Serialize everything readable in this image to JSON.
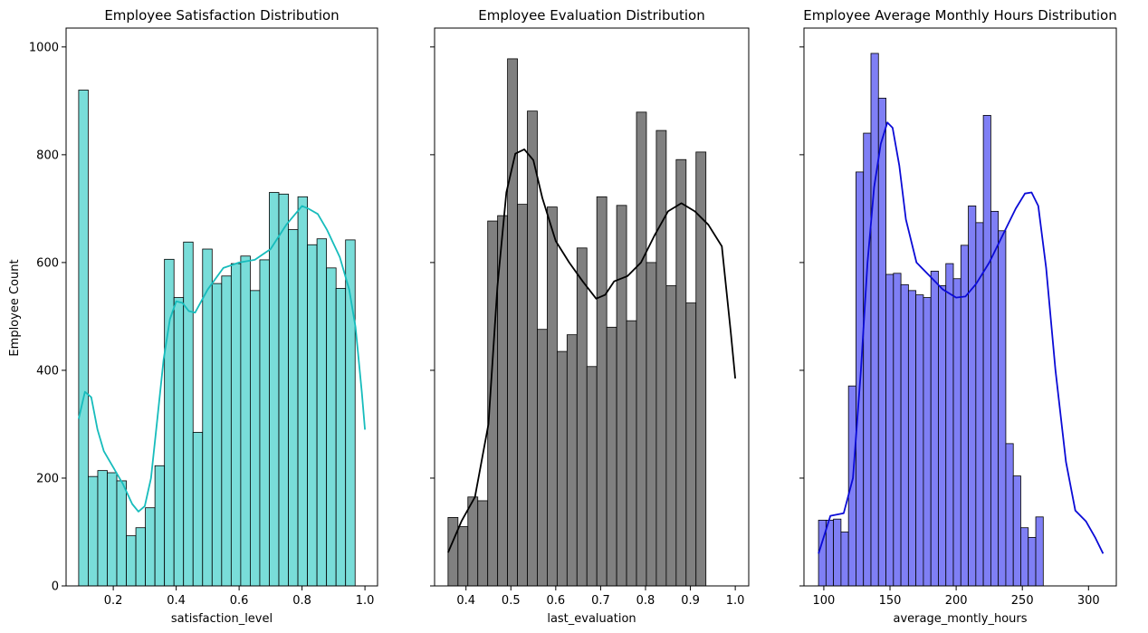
{
  "figure": {
    "ylabel": "Employee Count"
  },
  "chart_data": [
    {
      "type": "bar",
      "title": "Employee Satisfaction Distribution",
      "xlabel": "satisfaction_level",
      "ylabel": "Employee Count",
      "xlim": [
        0.05,
        1.04
      ],
      "ylim": [
        0,
        1035
      ],
      "xticks": [
        0.2,
        0.4,
        0.6,
        0.8,
        1.0
      ],
      "xtick_labels": [
        "0.2",
        "0.4",
        "0.6",
        "0.8",
        "1.0"
      ],
      "yticks": [
        0,
        200,
        400,
        600,
        800,
        1000
      ],
      "ytick_labels": [
        "0",
        "200",
        "400",
        "600",
        "800",
        "1000"
      ],
      "bin_start": 0.09,
      "bin_width": 0.0303,
      "values": [
        920,
        203,
        214,
        210,
        195,
        93,
        108,
        145,
        223,
        606,
        535,
        638,
        285,
        625,
        561,
        575,
        598,
        612,
        548,
        605,
        730,
        727,
        661,
        722,
        633,
        644,
        590,
        552,
        642
      ],
      "kde_x": [
        0.09,
        0.11,
        0.13,
        0.15,
        0.17,
        0.2,
        0.23,
        0.26,
        0.28,
        0.3,
        0.32,
        0.34,
        0.36,
        0.38,
        0.4,
        0.42,
        0.44,
        0.46,
        0.5,
        0.55,
        0.6,
        0.65,
        0.7,
        0.75,
        0.8,
        0.82,
        0.85,
        0.88,
        0.92,
        0.95,
        0.97,
        0.99,
        1.0
      ],
      "kde_y": [
        310,
        360,
        350,
        290,
        250,
        220,
        190,
        152,
        138,
        148,
        200,
        310,
        420,
        495,
        528,
        525,
        510,
        507,
        550,
        590,
        600,
        605,
        625,
        670,
        705,
        700,
        690,
        660,
        610,
        550,
        480,
        360,
        290
      ],
      "colors": {
        "fill": "#79ddd9",
        "line": "#17bcbc"
      }
    },
    {
      "type": "bar",
      "title": "Employee Evaluation Distribution",
      "xlabel": "last_evaluation",
      "ylabel": "",
      "xlim": [
        0.33,
        1.03
      ],
      "ylim": [
        0,
        1035
      ],
      "xticks": [
        0.4,
        0.5,
        0.6,
        0.7,
        0.8,
        0.9,
        1.0
      ],
      "xtick_labels": [
        "0.4",
        "0.5",
        "0.6",
        "0.7",
        "0.8",
        "0.9",
        "1.0"
      ],
      "yticks": [
        0,
        200,
        400,
        600,
        800,
        1000
      ],
      "ytick_labels": [],
      "bin_start": 0.36,
      "bin_width": 0.0221,
      "values": [
        127,
        110,
        165,
        158,
        677,
        687,
        978,
        708,
        881,
        476,
        703,
        435,
        466,
        627,
        407,
        722,
        480,
        706,
        492,
        879,
        600,
        845,
        557,
        791,
        525,
        805
      ],
      "kde_x": [
        0.36,
        0.39,
        0.42,
        0.45,
        0.47,
        0.49,
        0.51,
        0.53,
        0.55,
        0.57,
        0.6,
        0.63,
        0.66,
        0.69,
        0.71,
        0.73,
        0.76,
        0.79,
        0.82,
        0.85,
        0.88,
        0.91,
        0.94,
        0.97,
        0.99,
        1.0
      ],
      "kde_y": [
        62,
        120,
        165,
        300,
        555,
        730,
        802,
        810,
        790,
        720,
        640,
        600,
        565,
        533,
        540,
        565,
        575,
        600,
        650,
        695,
        710,
        695,
        670,
        630,
        470,
        385
      ],
      "colors": {
        "fill": "#808080",
        "line": "#000000"
      }
    },
    {
      "type": "bar",
      "title": "Employee Average Monthly Hours Distribution",
      "xlabel": "average_montly_hours",
      "ylabel": "",
      "xlim": [
        85,
        321
      ],
      "ylim": [
        0,
        1035
      ],
      "xticks": [
        100,
        150,
        200,
        250,
        300
      ],
      "xtick_labels": [
        "100",
        "150",
        "200",
        "250",
        "300"
      ],
      "yticks": [
        0,
        200,
        400,
        600,
        800,
        1000
      ],
      "ytick_labels": [],
      "bin_start": 96,
      "bin_width": 5.66,
      "values": [
        122,
        122,
        124,
        100,
        371,
        768,
        840,
        988,
        905,
        578,
        580,
        559,
        548,
        540,
        535,
        584,
        557,
        598,
        570,
        632,
        705,
        674,
        873,
        695,
        659,
        264,
        204,
        108,
        90,
        128
      ],
      "kde_x": [
        96,
        105,
        115,
        122,
        128,
        133,
        138,
        143,
        148,
        152,
        157,
        162,
        170,
        180,
        190,
        200,
        207,
        215,
        225,
        235,
        245,
        252,
        257,
        262,
        268,
        275,
        283,
        290,
        298,
        305,
        311
      ],
      "kde_y": [
        60,
        130,
        135,
        200,
        400,
        600,
        740,
        820,
        860,
        850,
        780,
        680,
        600,
        575,
        550,
        535,
        537,
        560,
        600,
        650,
        700,
        728,
        730,
        705,
        590,
        400,
        230,
        140,
        120,
        90,
        60
      ],
      "colors": {
        "fill": "#7f7ff5",
        "line": "#0b0bd6"
      }
    }
  ]
}
